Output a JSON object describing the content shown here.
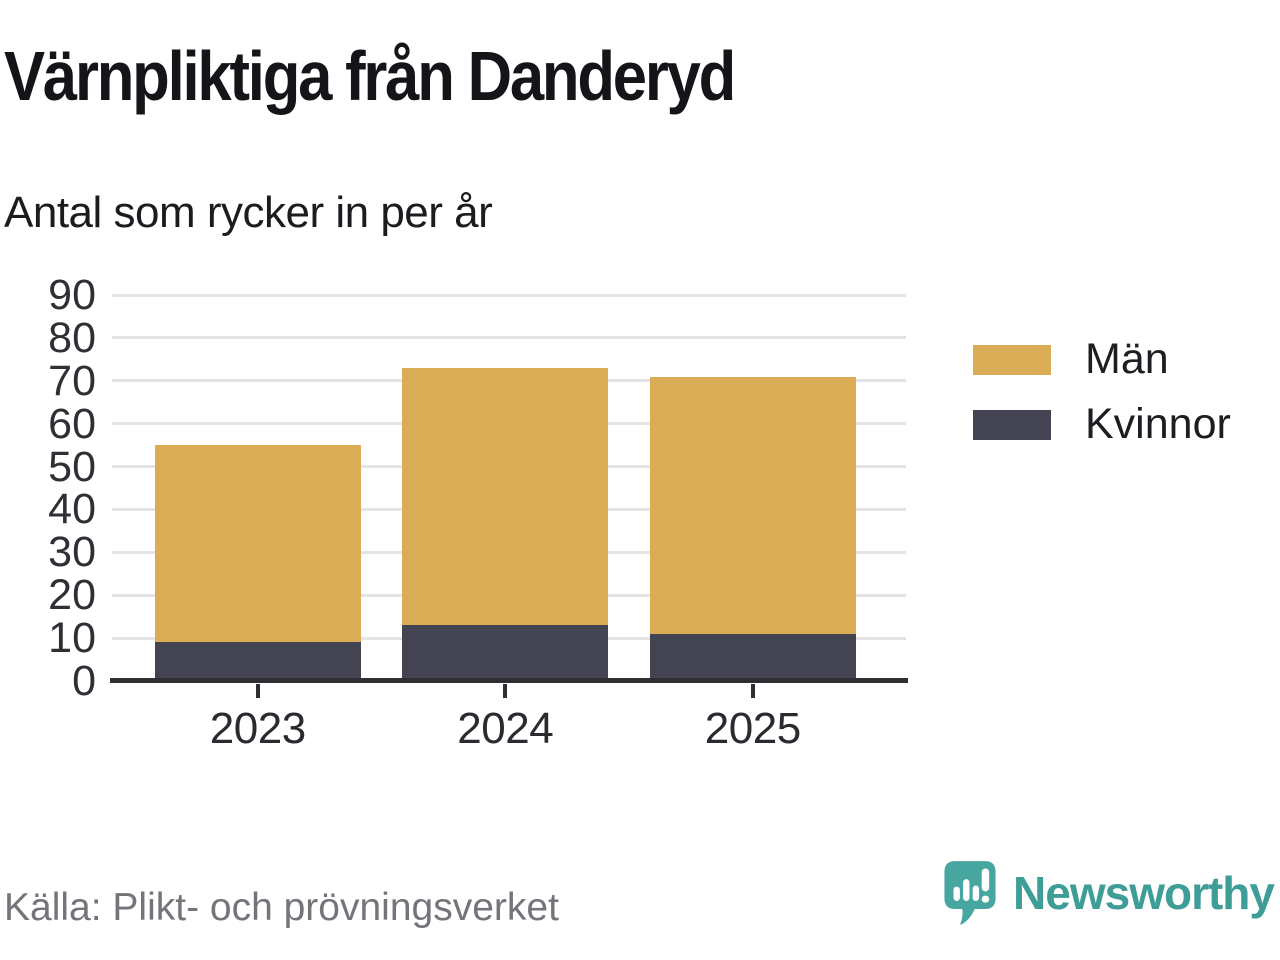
{
  "header": {
    "title": "Värnpliktiga från Danderyd",
    "subtitle": "Antal som rycker in per år"
  },
  "chart_data": {
    "type": "bar",
    "stacked": true,
    "title": "Värnpliktiga från Danderyd",
    "subtitle": "Antal som rycker in per år",
    "xlabel": "",
    "ylabel": "",
    "categories": [
      "2023",
      "2024",
      "2025"
    ],
    "series": [
      {
        "name": "Kvinnor",
        "color": "#444352",
        "values": [
          9,
          13,
          11
        ]
      },
      {
        "name": "Män",
        "color": "#d9ac55",
        "values": [
          46,
          60,
          60
        ]
      }
    ],
    "stack_totals": [
      55,
      73,
      71
    ],
    "ylim": [
      0,
      90
    ],
    "yticks": [
      0,
      10,
      20,
      30,
      40,
      50,
      60,
      70,
      80,
      90
    ],
    "grid": true,
    "legend_position": "right",
    "legend_order": [
      "Män",
      "Kvinnor"
    ]
  },
  "footer": {
    "source": "Källa: Plikt- och prövningsverket",
    "brand": "Newsworthy"
  },
  "colors": {
    "background": "#ffffff",
    "axis": "#2e2e33",
    "grid": "#e4e4e4",
    "tick_label": "#2f2f35",
    "men": "#d9ac55",
    "women": "#444352",
    "source_text": "#75747b",
    "brand_teal_text": "#3e9e97",
    "brand_teal_icon": "#47a69f"
  }
}
